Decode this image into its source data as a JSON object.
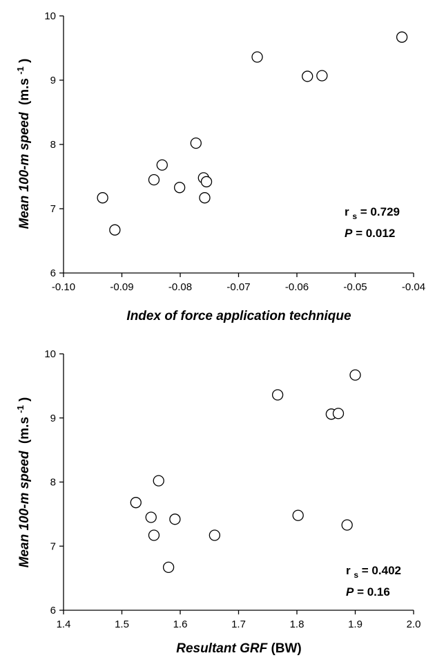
{
  "chart_data": [
    {
      "type": "scatter",
      "xlabel": "Index of force application technique",
      "ylabel_prefix": "Mean 100-m speed",
      "ylabel_unit": "(m.s",
      "ylabel_exp": "-1",
      "ylabel_close": ")",
      "xlim": [
        -0.1,
        -0.04
      ],
      "ylim": [
        6,
        10
      ],
      "xticks": [
        -0.1,
        -0.09,
        -0.08,
        -0.07,
        -0.06,
        -0.05,
        -0.04
      ],
      "xtick_labels": [
        "-0.10",
        "-0.09",
        "-0.08",
        "-0.07",
        "-0.06",
        "-0.05",
        "-0.04"
      ],
      "yticks": [
        6,
        7,
        8,
        9,
        10
      ],
      "ytick_labels": [
        "6",
        "7",
        "8",
        "9",
        "10"
      ],
      "grid": false,
      "points": [
        {
          "x": -0.0933,
          "y": 7.17
        },
        {
          "x": -0.0912,
          "y": 6.67
        },
        {
          "x": -0.0845,
          "y": 7.45
        },
        {
          "x": -0.0831,
          "y": 7.68
        },
        {
          "x": -0.0801,
          "y": 7.33
        },
        {
          "x": -0.0773,
          "y": 8.02
        },
        {
          "x": -0.076,
          "y": 7.48
        },
        {
          "x": -0.0755,
          "y": 7.42
        },
        {
          "x": -0.0758,
          "y": 7.17
        },
        {
          "x": -0.0668,
          "y": 9.36
        },
        {
          "x": -0.0582,
          "y": 9.06
        },
        {
          "x": -0.0557,
          "y": 9.07
        },
        {
          "x": -0.042,
          "y": 9.67
        }
      ],
      "stat_r_label": "r",
      "stat_r_sub": "s",
      "stat_r_value": " = 0.729",
      "stat_p_label": "P",
      "stat_p_value": " = 0.012"
    },
    {
      "type": "scatter",
      "xlabel_main": "Resultant GRF",
      "xlabel_unit": " (BW)",
      "ylabel_prefix": "Mean 100-m speed",
      "ylabel_unit": "(m.s",
      "ylabel_exp": "-1",
      "ylabel_close": ")",
      "xlim": [
        1.4,
        2.0
      ],
      "ylim": [
        6,
        10
      ],
      "xticks": [
        1.4,
        1.5,
        1.6,
        1.7,
        1.8,
        1.9,
        2.0
      ],
      "xtick_labels": [
        "1.4",
        "1.5",
        "1.6",
        "1.7",
        "1.8",
        "1.9",
        "2.0"
      ],
      "yticks": [
        6,
        7,
        8,
        9,
        10
      ],
      "ytick_labels": [
        "6",
        "7",
        "8",
        "9",
        "10"
      ],
      "grid": false,
      "points": [
        {
          "x": 1.524,
          "y": 7.68
        },
        {
          "x": 1.55,
          "y": 7.45
        },
        {
          "x": 1.555,
          "y": 7.17
        },
        {
          "x": 1.563,
          "y": 8.02
        },
        {
          "x": 1.58,
          "y": 6.67
        },
        {
          "x": 1.591,
          "y": 7.42
        },
        {
          "x": 1.659,
          "y": 7.17
        },
        {
          "x": 1.767,
          "y": 9.36
        },
        {
          "x": 1.802,
          "y": 7.48
        },
        {
          "x": 1.859,
          "y": 9.06
        },
        {
          "x": 1.871,
          "y": 9.07
        },
        {
          "x": 1.886,
          "y": 7.33
        },
        {
          "x": 1.9,
          "y": 9.67
        }
      ],
      "stat_r_label": "r",
      "stat_r_sub": "s",
      "stat_r_value": " = 0.402",
      "stat_p_label": "P",
      "stat_p_value": " = 0.16"
    }
  ]
}
